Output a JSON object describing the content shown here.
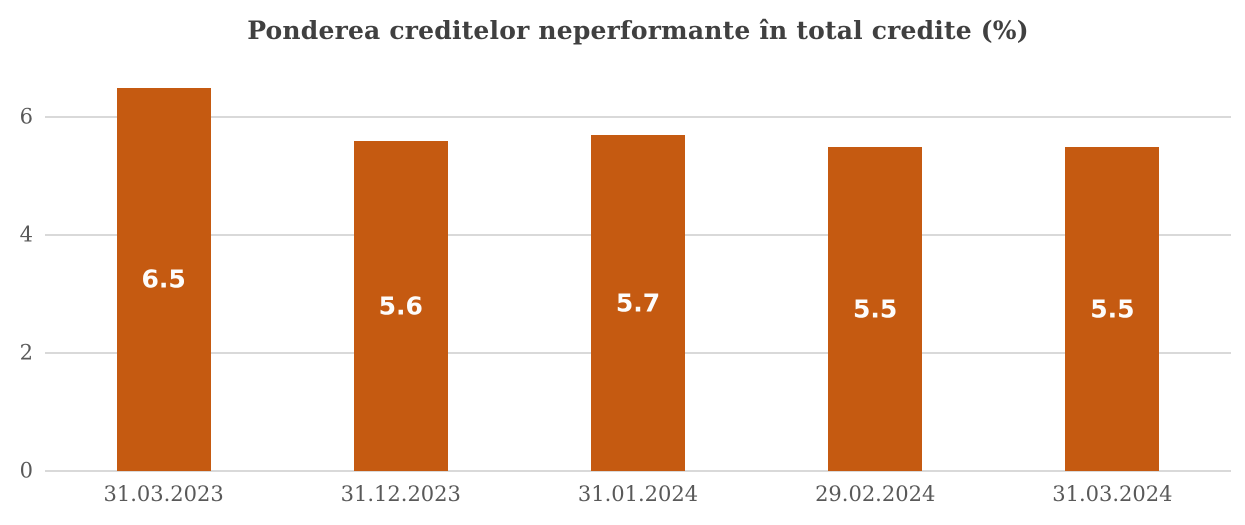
{
  "chart_data": {
    "type": "bar",
    "title": "Ponderea creditelor neperformante în total credite (%)",
    "categories": [
      "31.03.2023",
      "31.12.2023",
      "31.01.2024",
      "29.02.2024",
      "31.03.2024"
    ],
    "values": [
      6.5,
      5.6,
      5.7,
      5.5,
      5.5
    ],
    "data_labels": [
      "6.5",
      "5.6",
      "5.7",
      "5.5",
      "5.5"
    ],
    "xlabel": "",
    "ylabel": "",
    "y_ticks": [
      0,
      2,
      4,
      6
    ],
    "ylim": [
      0,
      6.63
    ],
    "grid": true,
    "legend": "none",
    "colors": {
      "bar": "#C55A11",
      "data_label": "#FDFCFB",
      "gridline": "#D9D9D9",
      "title_text": "#404040",
      "axis_text": "#595959",
      "background": "#FFFFFF"
    }
  }
}
